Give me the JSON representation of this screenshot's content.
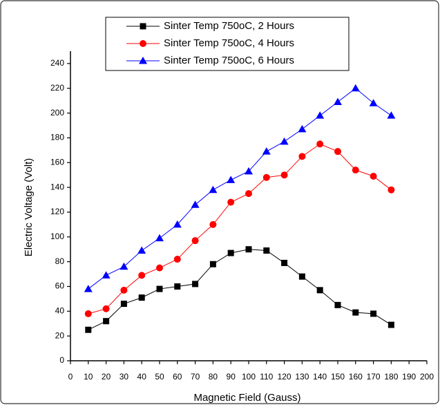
{
  "chart_data": {
    "type": "line",
    "xlabel": "Magnetic Field (Gauss)",
    "ylabel": "Electric Voltage (Volt)",
    "x": [
      10,
      20,
      30,
      40,
      50,
      60,
      70,
      80,
      90,
      100,
      110,
      120,
      130,
      140,
      150,
      160,
      170,
      180
    ],
    "series": [
      {
        "name": "Sinter Temp 750oC, 2 Hours",
        "color": "#000000",
        "marker": "square",
        "values": [
          25,
          32,
          46,
          51,
          58,
          60,
          62,
          78,
          87,
          90,
          89,
          79,
          68,
          57,
          45,
          39,
          38,
          29
        ]
      },
      {
        "name": "Sinter Temp 750oC, 4 Hours",
        "color": "#ff0000",
        "marker": "circle",
        "values": [
          38,
          42,
          57,
          69,
          75,
          82,
          97,
          110,
          128,
          135,
          148,
          150,
          165,
          175,
          169,
          154,
          149,
          138
        ]
      },
      {
        "name": "Sinter Temp 750oC, 6 Hours",
        "color": "#0000ff",
        "marker": "triangle",
        "values": [
          58,
          69,
          76,
          89,
          99,
          110,
          126,
          138,
          146,
          153,
          169,
          177,
          187,
          198,
          209,
          220,
          208,
          198
        ]
      }
    ],
    "xlim": [
      0,
      200
    ],
    "xticks": [
      0,
      10,
      20,
      30,
      40,
      50,
      60,
      70,
      80,
      90,
      100,
      110,
      120,
      130,
      140,
      150,
      160,
      170,
      180,
      190,
      200
    ],
    "ylim": [
      0,
      250
    ],
    "yticks": [
      0,
      20,
      40,
      60,
      80,
      100,
      120,
      140,
      160,
      180,
      200,
      220,
      240
    ],
    "grid": false,
    "legend": "top"
  }
}
